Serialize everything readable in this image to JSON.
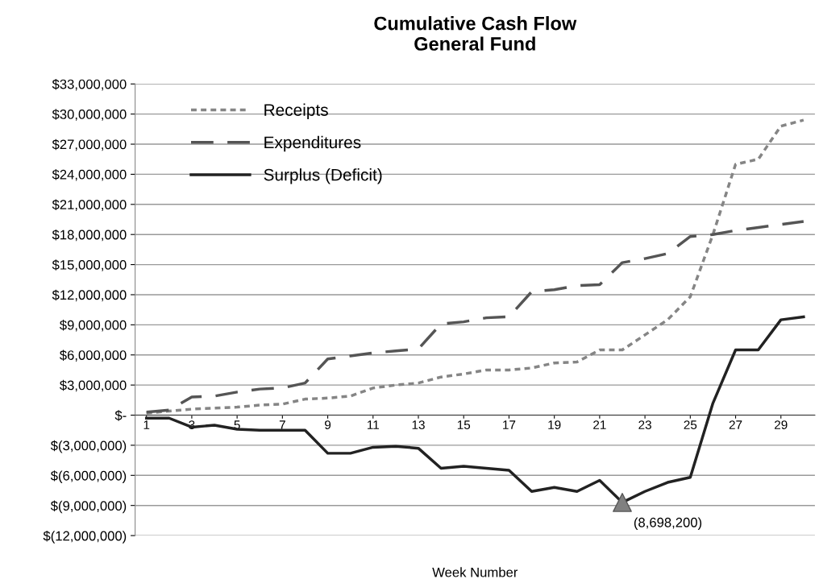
{
  "chart_data": {
    "type": "line",
    "title": "Cumulative Cash Flow\nGeneral Fund",
    "xlabel": "Week Number",
    "x": [
      1,
      2,
      3,
      4,
      5,
      6,
      7,
      8,
      9,
      10,
      11,
      12,
      13,
      14,
      15,
      16,
      17,
      18,
      19,
      20,
      21,
      22,
      23,
      24,
      25,
      26,
      27,
      28,
      29,
      30
    ],
    "series": [
      {
        "name": "Receipts",
        "color": "#858585",
        "line_style": "dotted",
        "values": [
          200000,
          400000,
          600000,
          700000,
          800000,
          1000000,
          1100000,
          1600000,
          1700000,
          1900000,
          2700000,
          3000000,
          3200000,
          3800000,
          4100000,
          4500000,
          4500000,
          4700000,
          5200000,
          5300000,
          6500000,
          6500000,
          8000000,
          9500000,
          11800000,
          18000000,
          25000000,
          25500000,
          28800000,
          29400000
        ]
      },
      {
        "name": "Expenditures",
        "color": "#555555",
        "line_style": "dashed",
        "values": [
          300000,
          500000,
          1800000,
          1900000,
          2300000,
          2600000,
          2700000,
          3200000,
          5600000,
          5900000,
          6200000,
          6400000,
          6600000,
          9100000,
          9300000,
          9700000,
          9800000,
          12300000,
          12500000,
          12900000,
          13000000,
          15200000,
          15600000,
          16100000,
          17800000,
          18000000,
          18400000,
          18700000,
          19000000,
          19300000
        ]
      },
      {
        "name": "Surplus (Deficit)",
        "color": "#222222",
        "line_style": "solid",
        "values": [
          -300000,
          -300000,
          -1200000,
          -1000000,
          -1400000,
          -1500000,
          -1500000,
          -1500000,
          -3800000,
          -3800000,
          -3200000,
          -3100000,
          -3300000,
          -5300000,
          -5100000,
          -5300000,
          -5500000,
          -7600000,
          -7200000,
          -7600000,
          -6500000,
          -8698200,
          -7600000,
          -6700000,
          -6200000,
          1200000,
          6500000,
          6500000,
          9500000,
          9800000
        ]
      },
      {
        "type": "scatter",
        "color": "#808080",
        "marker": "triangle",
        "x": [
          22
        ],
        "values": [
          -8698200
        ]
      }
    ],
    "annotations": [
      {
        "text": "(8,698,200)",
        "x": 22,
        "y": -8698200
      }
    ],
    "xlim": [
      0.5,
      30.5
    ],
    "xticks": [
      1,
      3,
      5,
      7,
      9,
      11,
      13,
      15,
      17,
      19,
      21,
      23,
      25,
      27,
      29
    ],
    "ylim": [
      -12000000,
      33000000
    ],
    "yticks": [
      {
        "value": -12000000,
        "label": "$(12,000,000)"
      },
      {
        "value": -9000000,
        "label": "$(9,000,000)"
      },
      {
        "value": -6000000,
        "label": "$(6,000,000)"
      },
      {
        "value": -3000000,
        "label": "$(3,000,000)"
      },
      {
        "value": 0,
        "label": "$-"
      },
      {
        "value": 3000000,
        "label": "$3,000,000"
      },
      {
        "value": 6000000,
        "label": "$6,000,000"
      },
      {
        "value": 9000000,
        "label": "$9,000,000"
      },
      {
        "value": 12000000,
        "label": "$12,000,000"
      },
      {
        "value": 15000000,
        "label": "$15,000,000"
      },
      {
        "value": 18000000,
        "label": "$18,000,000"
      },
      {
        "value": 21000000,
        "label": "$21,000,000"
      },
      {
        "value": 24000000,
        "label": "$24,000,000"
      },
      {
        "value": 27000000,
        "label": "$27,000,000"
      },
      {
        "value": 30000000,
        "label": "$30,000,000"
      },
      {
        "value": 33000000,
        "label": "$33,000,000"
      }
    ],
    "grid": "y",
    "legend": "top left"
  }
}
